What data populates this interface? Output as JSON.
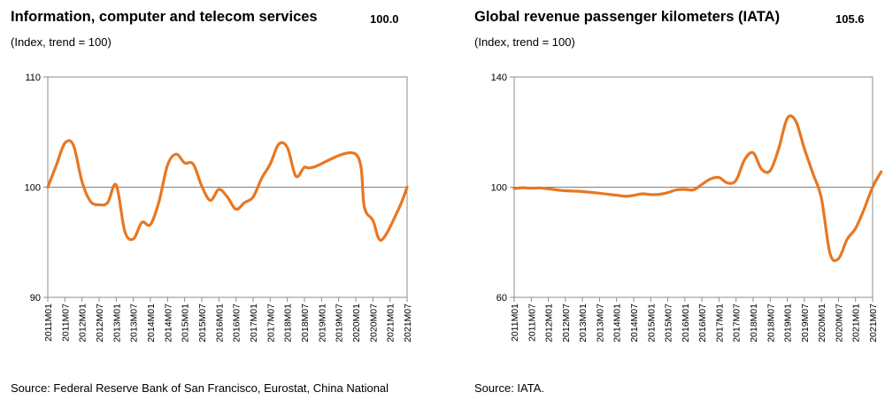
{
  "charts": [
    {
      "title": "Information, computer and telecom services",
      "headline_value": "100.0",
      "subtitle": "(Index, trend = 100)",
      "source": "Source:  Federal Reserve Bank of San Francisco, Eurostat, China National",
      "line_color": "#E87722"
    },
    {
      "title": "Global revenue passenger kilometers (IATA)",
      "headline_value": "105.6",
      "subtitle": "(Index, trend = 100)",
      "source": "Source: IATA.",
      "line_color": "#E87722"
    }
  ],
  "chart_data": [
    {
      "type": "line",
      "ylim": [
        90,
        110
      ],
      "yticks": [
        90,
        100,
        110
      ],
      "reference_line": 100,
      "grid": false,
      "categories": [
        "2011M01",
        "2011M07",
        "2012M01",
        "2012M07",
        "2013M01",
        "2013M07",
        "2014M01",
        "2014M07",
        "2015M01",
        "2015M07",
        "2016M01",
        "2016M07",
        "2017M01",
        "2017M07",
        "2018M01",
        "2018M07",
        "2019M01",
        "2019M07",
        "2020M01",
        "2020M07",
        "2021M01",
        "2021M07"
      ],
      "series": [
        {
          "values": [
            100.0,
            102.0,
            104.0,
            103.8,
            100.5,
            98.7,
            98.4,
            98.6,
            100.2,
            96.0,
            95.3,
            96.8,
            96.6,
            98.7,
            102.0,
            103.0,
            102.2,
            102.1,
            100.1,
            98.8,
            99.8,
            99.1,
            98.0,
            98.6,
            99.1,
            100.8,
            102.1,
            103.9,
            103.6,
            101.0,
            101.8,
            101.8,
            103.0,
            98.2,
            97.0,
            95.2,
            98.0,
            100.0
          ],
          "x": [
            0,
            3,
            6,
            9,
            12,
            15,
            18,
            21,
            24,
            27,
            30,
            33,
            36,
            39,
            42,
            45,
            48,
            51,
            54,
            57,
            60,
            63,
            66,
            69,
            72,
            75,
            78,
            81,
            84,
            87,
            90,
            93,
            108,
            111,
            114,
            117,
            123,
            126
          ]
        }
      ]
    },
    {
      "type": "line",
      "ylim": [
        60,
        140
      ],
      "yticks": [
        60,
        100,
        140
      ],
      "reference_line": 100,
      "grid": false,
      "categories": [
        "2011M01",
        "2011M07",
        "2012M01",
        "2012M07",
        "2013M01",
        "2013M07",
        "2014M01",
        "2014M07",
        "2015M01",
        "2015M07",
        "2016M01",
        "2016M07",
        "2017M01",
        "2017M07",
        "2018M01",
        "2018M07",
        "2019M01",
        "2019M07",
        "2020M01",
        "2020M07",
        "2021M01",
        "2021M07"
      ],
      "series": [
        {
          "values": [
            99.5,
            99.8,
            99.6,
            99.7,
            99.4,
            99.0,
            98.7,
            98.6,
            98.4,
            98.1,
            97.8,
            97.4,
            97.1,
            96.7,
            97.0,
            97.6,
            97.3,
            97.4,
            98.0,
            99.0,
            99.2,
            99.0,
            101.0,
            103.0,
            103.5,
            101.5,
            102.5,
            110.0,
            112.5,
            106.5,
            106.0,
            114.0,
            125.0,
            124.0,
            114.0,
            105.0,
            96.0,
            76.0,
            74.0,
            81.0,
            85.0,
            92.0,
            100.0,
            105.6
          ],
          "x": [
            0,
            3,
            6,
            9,
            12,
            15,
            18,
            21,
            24,
            27,
            30,
            33,
            36,
            39,
            42,
            45,
            48,
            51,
            54,
            57,
            60,
            63,
            66,
            69,
            72,
            75,
            78,
            81,
            84,
            87,
            90,
            93,
            96,
            99,
            102,
            105,
            108,
            111,
            114,
            117,
            120,
            123,
            126,
            129
          ]
        }
      ]
    }
  ]
}
